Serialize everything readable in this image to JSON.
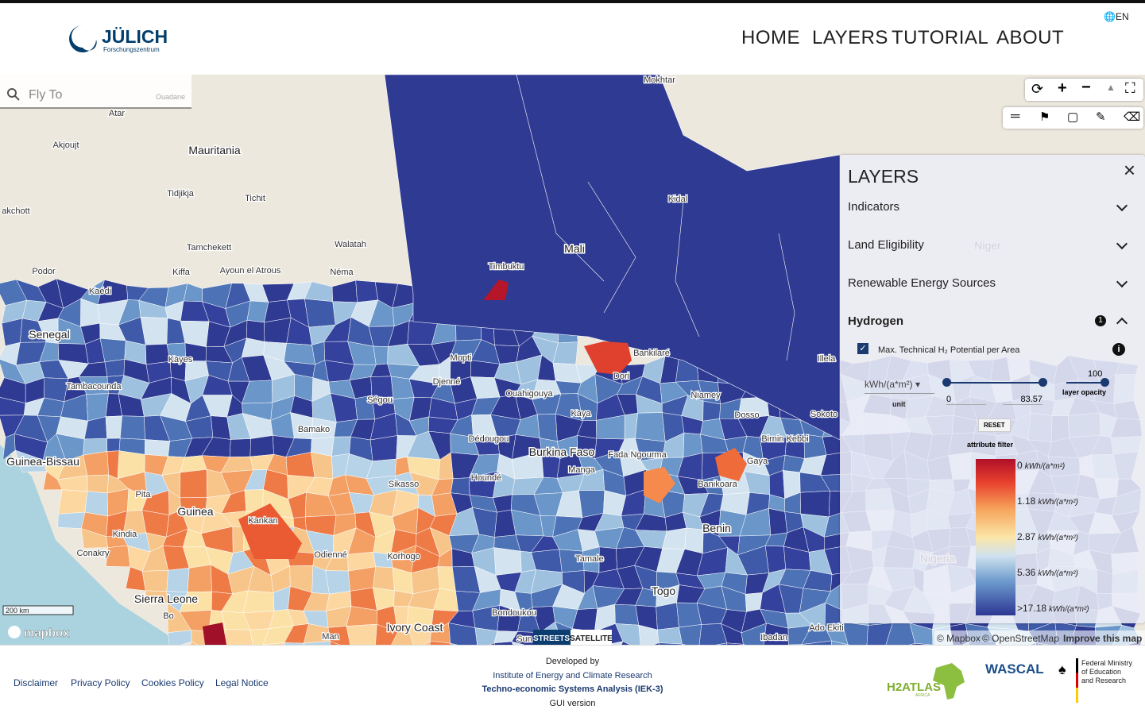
{
  "header": {
    "logo": "JÜLICH",
    "logo_sub": "Forschungszentrum",
    "language": "EN",
    "nav": [
      "HOME",
      "LAYERS",
      "TUTORIAL",
      "ABOUT"
    ]
  },
  "search": {
    "placeholder": "Fly To",
    "hint": "Ouadane"
  },
  "map": {
    "labels": [
      "Mokhtar",
      "Atar",
      "Akjoujt",
      "Mauritania",
      "Tidjikja",
      "Tichit",
      "akchott",
      "Tamchekett",
      "Walatah",
      "Podor",
      "Kiffa",
      "Ayoun el Atrous",
      "Néma",
      "Kaédi",
      "Mali",
      "Timbuktu",
      "Kidal",
      "Senegal",
      "Kayes",
      "Mopti",
      "Bankilaré",
      "Djenné",
      "Dori",
      "Tambacounda",
      "Ségou",
      "Ouahigouya",
      "Kaya",
      "Niamey",
      "Dosso",
      "Bamako",
      "Dédougou",
      "Birnin Kebbi",
      "Guinea-Bissau",
      "Burkina Faso",
      "Fada Ngourma",
      "Gaya",
      "Manga",
      "Houndé",
      "Sikasso",
      "Banikoara",
      "Pita",
      "Guinea",
      "Kankan",
      "Kindia",
      "Benin",
      "Conakry",
      "Odienné",
      "Korhogo",
      "Tamale",
      "Sierra Leone",
      "Togo",
      "Bo",
      "Bondoukou",
      "Ivory Coast",
      "Man",
      "Ibadan",
      "Ado Ekiti",
      "Sokoto",
      "Illela",
      "Sun",
      "Niger",
      "Nigeria"
    ],
    "scale": "200 km",
    "brand": "mapbox",
    "basemaps": [
      "STREETS",
      "SATELLITE"
    ],
    "attribution": [
      "© Mapbox",
      "© OpenStreetMap",
      "Improve this map"
    ]
  },
  "layers_panel": {
    "title": "LAYERS",
    "groups": [
      "Indicators",
      "Land Eligibility",
      "Renewable Energy Sources",
      "Hydrogen"
    ],
    "active_count": "1",
    "layer": "Max. Technical H₂ Potential per Area",
    "unit_value": "kWh/(a*m²)",
    "unit_label": "unit",
    "range_min": "0",
    "range_max": "83.57",
    "opacity": "100",
    "opacity_label": "layer opacity",
    "reset": "RESET",
    "filter_label": "attribute filter",
    "legend": [
      {
        "value": "0",
        "unit": "kWh/(a*m²)"
      },
      {
        "value": "1.18",
        "unit": "kWh/(a*m²)"
      },
      {
        "value": "2.87",
        "unit": "kWh/(a*m²)"
      },
      {
        "value": "5.36",
        "unit": "kWh/(a*m²)"
      },
      {
        "value": ">17.18",
        "unit": "kWh/(a*m²)"
      }
    ]
  },
  "footer": {
    "links": [
      "Disclaimer",
      "Privacy Policy",
      "Cookies Policy",
      "Legal Notice"
    ],
    "developed_by": "Developed by",
    "institute": "Institute of Energy and Climate Research",
    "division": "Techno-economic Systems Analysis (IEK-3)",
    "version": "GUI version",
    "partners": {
      "h2atlas": "H2ATLAS",
      "africa": "AFRICA",
      "wascal": "WASCAL",
      "ministry": [
        "Federal Ministry",
        "of Education",
        "and Research"
      ]
    }
  }
}
